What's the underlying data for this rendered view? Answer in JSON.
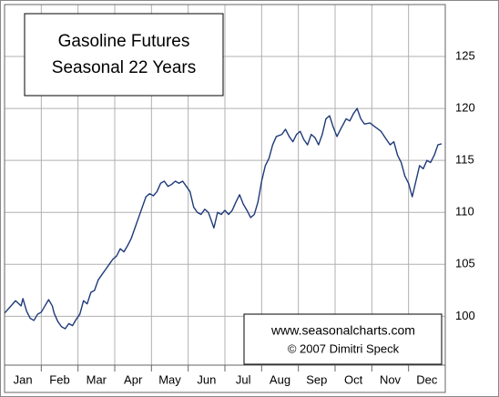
{
  "chart_data": {
    "type": "line",
    "title": "Gasoline Futures",
    "subtitle": "Seasonal 22 Years",
    "annotations": [
      "www.seasonalcharts.com",
      "© 2007  Dimitri Speck"
    ],
    "x": [
      0,
      0.3,
      0.45,
      0.5,
      0.6,
      0.7,
      0.8,
      0.9,
      1.0,
      1.1,
      1.2,
      1.3,
      1.35,
      1.45,
      1.55,
      1.65,
      1.75,
      1.85,
      1.95,
      2.05,
      2.15,
      2.25,
      2.35,
      2.45,
      2.55,
      2.65,
      2.75,
      2.85,
      2.95,
      3.05,
      3.15,
      3.25,
      3.35,
      3.45,
      3.55,
      3.65,
      3.75,
      3.85,
      3.95,
      4.05,
      4.15,
      4.25,
      4.35,
      4.45,
      4.55,
      4.65,
      4.75,
      4.85,
      4.95,
      5.05,
      5.15,
      5.25,
      5.35,
      5.45,
      5.55,
      5.6,
      5.7,
      5.8,
      5.9,
      6.0,
      6.1,
      6.2,
      6.3,
      6.4,
      6.5,
      6.6,
      6.7,
      6.8,
      6.9,
      7.0,
      7.1,
      7.2,
      7.3,
      7.4,
      7.55,
      7.65,
      7.75,
      7.85,
      7.95,
      8.05,
      8.15,
      8.25,
      8.35,
      8.45,
      8.55,
      8.65,
      8.75,
      8.85,
      8.95,
      9.05,
      9.15,
      9.3,
      9.4,
      9.5,
      9.6,
      9.7,
      9.8,
      9.95,
      10.1,
      10.25,
      10.4,
      10.5,
      10.6,
      10.7,
      10.8,
      10.9,
      11.0,
      11.1,
      11.2,
      11.3,
      11.4,
      11.5,
      11.6,
      11.7,
      11.8,
      11.9
    ],
    "series": [
      {
        "color": "#1f3a7a",
        "values": [
          100.3,
          101.5,
          101,
          101.7,
          100.5,
          99.8,
          99.6,
          100.2,
          100.4,
          101,
          101.6,
          101,
          100.3,
          99.5,
          99,
          98.8,
          99.3,
          99.1,
          99.7,
          100.2,
          101.5,
          101.2,
          102.3,
          102.5,
          103.5,
          104,
          104.5,
          105,
          105.5,
          105.8,
          106.5,
          106.2,
          106.8,
          107.5,
          108.5,
          109.5,
          110.5,
          111.5,
          111.8,
          111.6,
          112,
          112.8,
          113,
          112.5,
          112.7,
          113,
          112.8,
          113,
          112.5,
          112,
          110.5,
          110,
          109.8,
          110.3,
          110,
          109.5,
          108.5,
          110,
          109.8,
          110.2,
          109.8,
          110.2,
          111,
          111.7,
          110.8,
          110.2,
          109.5,
          109.8,
          111,
          113,
          114.5,
          115.2,
          116.5,
          117.3,
          117.5,
          118,
          117.3,
          116.8,
          117.5,
          117.8,
          117,
          116.5,
          117.5,
          117.2,
          116.5,
          117.5,
          119,
          119.3,
          118.2,
          117.3,
          118,
          119,
          118.8,
          119.5,
          120,
          119,
          118.5,
          118.6,
          118.2,
          117.8,
          117,
          116.5,
          116.8,
          115.5,
          114.8,
          113.5,
          112.8,
          111.5,
          113,
          114.5,
          114.2,
          115,
          114.8,
          115.5,
          116.5,
          116.6
        ]
      }
    ],
    "xlim": [
      0,
      12
    ],
    "xticks": [
      {
        "value": 0.5,
        "label": "Jan"
      },
      {
        "value": 1.5,
        "label": "Feb"
      },
      {
        "value": 2.5,
        "label": "Mar"
      },
      {
        "value": 3.5,
        "label": "Apr"
      },
      {
        "value": 4.5,
        "label": "May"
      },
      {
        "value": 5.5,
        "label": "Jun"
      },
      {
        "value": 6.5,
        "label": "Jul"
      },
      {
        "value": 7.5,
        "label": "Aug"
      },
      {
        "value": 8.5,
        "label": "Sep"
      },
      {
        "value": 9.5,
        "label": "Oct"
      },
      {
        "value": 10.5,
        "label": "Nov"
      },
      {
        "value": 11.5,
        "label": "Dec"
      }
    ],
    "xgrid": [
      1,
      2,
      3,
      4,
      5,
      6,
      7,
      8,
      9,
      10,
      11
    ],
    "ylim": [
      95.3,
      130
    ],
    "yticks": [
      100,
      105,
      110,
      115,
      120,
      125
    ],
    "grid": true
  }
}
